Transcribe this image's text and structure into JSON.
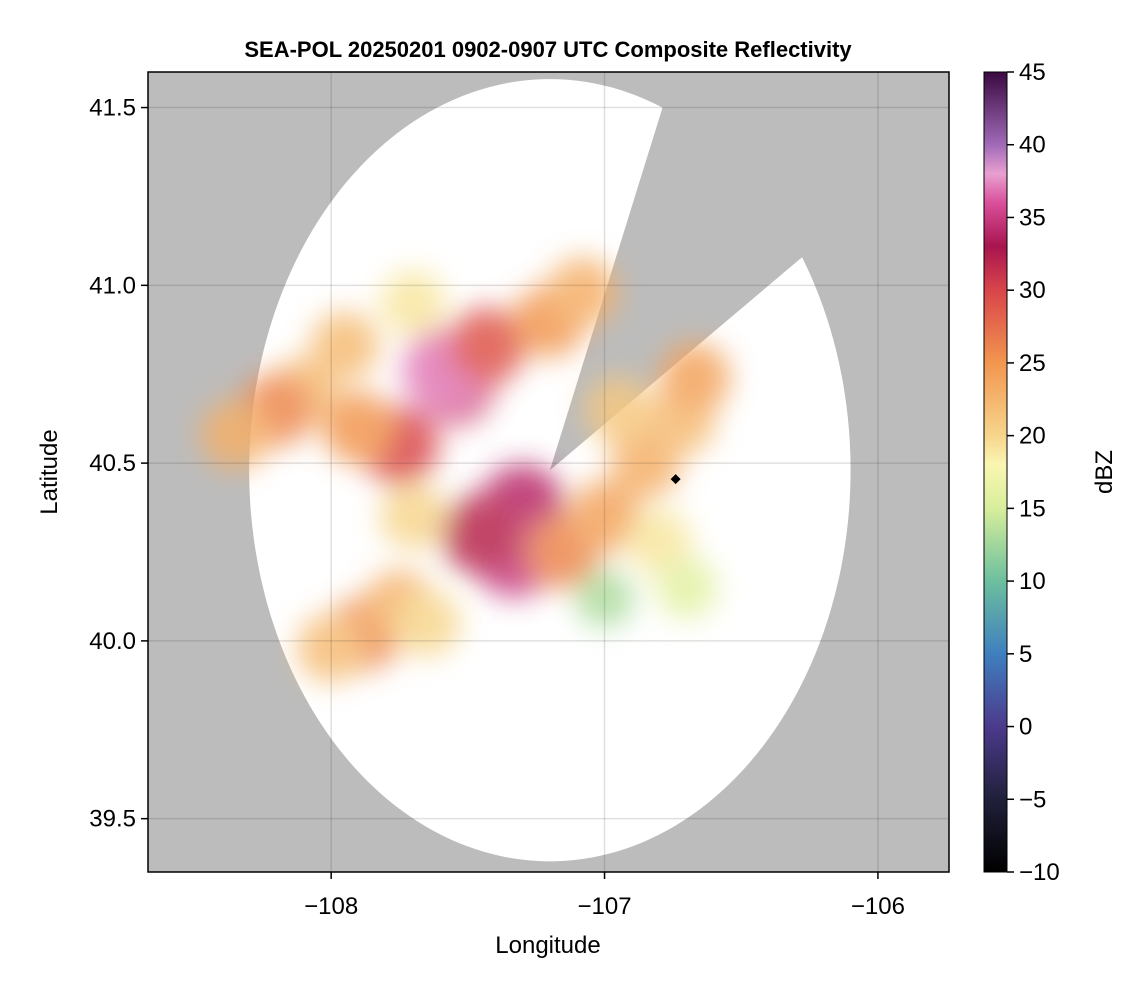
{
  "chart_data": {
    "type": "heatmap",
    "title": "SEA-POL 20250201 0902-0907 UTC Composite Reflectivity",
    "xlabel": "Longitude",
    "ylabel": "Latitude",
    "xlim": [
      -108.67,
      -105.74
    ],
    "ylim": [
      39.35,
      41.6
    ],
    "xticks": [
      -108,
      -107,
      -106
    ],
    "xtick_labels": [
      "−108",
      "−107",
      "−106"
    ],
    "yticks": [
      39.5,
      40.0,
      40.5,
      41.0,
      41.5
    ],
    "ytick_labels": [
      "39.5",
      "40.0",
      "40.5",
      "41.0",
      "41.5"
    ],
    "grid": true,
    "background_color": "#bcbcbc",
    "coverage_color": "#ffffff",
    "radar_site": {
      "lon": -107.2,
      "lat": 40.48
    },
    "coverage_radius_deg": 1.1,
    "blocked_sector_deg_cw_from_north": [
      22,
      57
    ],
    "marker": {
      "lon": -106.74,
      "lat": 40.455,
      "shape": "diamond",
      "color": "#000000"
    },
    "colorbar": {
      "label": "dBZ",
      "min": -10,
      "max": 45,
      "ticks": [
        -10,
        -5,
        0,
        5,
        10,
        15,
        20,
        25,
        30,
        35,
        40,
        45
      ],
      "tick_labels": [
        "−10",
        "−5",
        "0",
        "5",
        "10",
        "15",
        "20",
        "25",
        "30",
        "35",
        "40",
        "45"
      ],
      "colormap": "Spectral (reversed, dark low / purple high)",
      "stops": [
        [
          -10,
          "#000000"
        ],
        [
          -5,
          "#20203a"
        ],
        [
          0,
          "#4c3a8c"
        ],
        [
          5,
          "#3f7fbf"
        ],
        [
          10,
          "#6cbf9e"
        ],
        [
          15,
          "#d7ee9b"
        ],
        [
          18,
          "#f9f6b2"
        ],
        [
          20,
          "#f7d58c"
        ],
        [
          25,
          "#f2964f"
        ],
        [
          30,
          "#d9454a"
        ],
        [
          33,
          "#a8154f"
        ],
        [
          36,
          "#d94f9a"
        ],
        [
          38,
          "#e8a0d0"
        ],
        [
          40,
          "#a06ab8"
        ],
        [
          45,
          "#3a0a40"
        ]
      ]
    },
    "echo_regions": [
      {
        "lon": -107.55,
        "lat": 40.72,
        "dbz": 31
      },
      {
        "lon": -107.58,
        "lat": 40.76,
        "dbz": 37
      },
      {
        "lon": -107.43,
        "lat": 40.83,
        "dbz": 29
      },
      {
        "lon": -107.2,
        "lat": 40.9,
        "dbz": 25
      },
      {
        "lon": -107.08,
        "lat": 40.98,
        "dbz": 23
      },
      {
        "lon": -107.75,
        "lat": 40.55,
        "dbz": 30
      },
      {
        "lon": -107.9,
        "lat": 40.6,
        "dbz": 25
      },
      {
        "lon": -108.1,
        "lat": 40.7,
        "dbz": 22
      },
      {
        "lon": -108.2,
        "lat": 40.65,
        "dbz": 26
      },
      {
        "lon": -108.35,
        "lat": 40.58,
        "dbz": 23
      },
      {
        "lon": -107.3,
        "lat": 40.38,
        "dbz": 34
      },
      {
        "lon": -107.33,
        "lat": 40.24,
        "dbz": 35
      },
      {
        "lon": -107.45,
        "lat": 40.3,
        "dbz": 32
      },
      {
        "lon": -107.15,
        "lat": 40.25,
        "dbz": 26
      },
      {
        "lon": -107.0,
        "lat": 40.35,
        "dbz": 24
      },
      {
        "lon": -106.85,
        "lat": 40.5,
        "dbz": 23
      },
      {
        "lon": -106.72,
        "lat": 40.62,
        "dbz": 22
      },
      {
        "lon": -106.67,
        "lat": 40.74,
        "dbz": 24
      },
      {
        "lon": -106.8,
        "lat": 40.28,
        "dbz": 19
      },
      {
        "lon": -106.7,
        "lat": 40.15,
        "dbz": 16
      },
      {
        "lon": -107.88,
        "lat": 40.02,
        "dbz": 26
      },
      {
        "lon": -107.75,
        "lat": 40.1,
        "dbz": 23
      },
      {
        "lon": -108.0,
        "lat": 39.98,
        "dbz": 22
      },
      {
        "lon": -107.65,
        "lat": 40.05,
        "dbz": 20
      },
      {
        "lon": -107.95,
        "lat": 40.83,
        "dbz": 22
      },
      {
        "lon": -107.7,
        "lat": 40.95,
        "dbz": 19
      },
      {
        "lon": -107.0,
        "lat": 40.12,
        "dbz": 13
      },
      {
        "lon": -107.7,
        "lat": 40.35,
        "dbz": 20
      },
      {
        "lon": -106.95,
        "lat": 40.65,
        "dbz": 21
      }
    ]
  }
}
